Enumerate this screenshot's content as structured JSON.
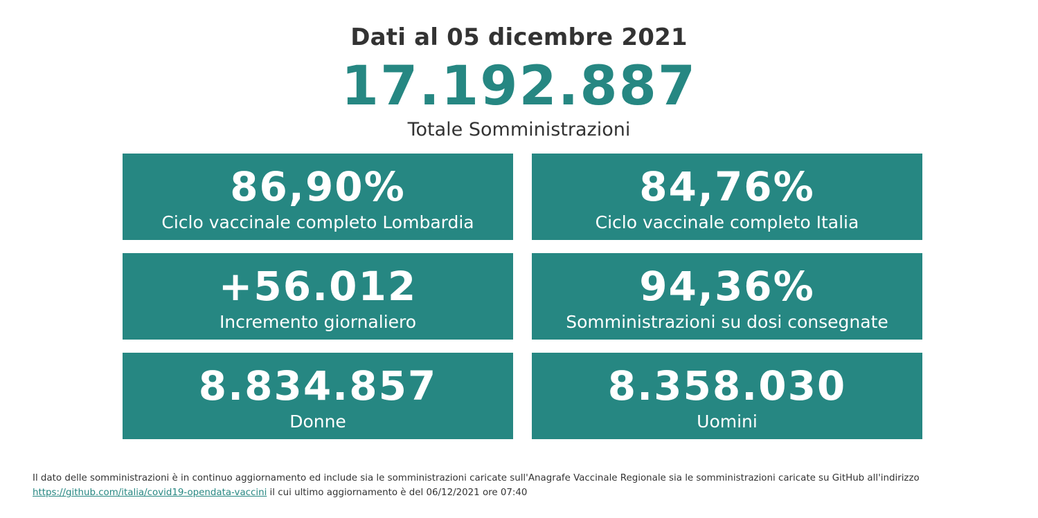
{
  "header": {
    "date_line": "Dati al 05 dicembre 2021",
    "total_value": "17.192.887",
    "total_label": "Totale Somministrazioni"
  },
  "tiles": [
    {
      "value": "86,90%",
      "label": "Ciclo vaccinale completo Lombardia"
    },
    {
      "value": "84,76%",
      "label": "Ciclo vaccinale completo Italia"
    },
    {
      "value": "+56.012",
      "label": "Incremento giornaliero"
    },
    {
      "value": "94,36%",
      "label": "Somministrazioni su dosi consegnate"
    },
    {
      "value": "8.834.857",
      "label": "Donne"
    },
    {
      "value": "8.358.030",
      "label": "Uomini"
    }
  ],
  "footnote": {
    "text_before": "Il dato delle somministrazioni è in continuo aggiornamento ed include sia le somministrazioni caricate sull'Anagrafe Vaccinale Regionale sia le somministrazioni caricate su GitHub all'indirizzo",
    "link_text": "https://github.com/italia/covid19-opendata-vaccini",
    "text_after": " il cui ultimo aggiornamento è del 06/12/2021 ore 07:40"
  },
  "colors": {
    "accent": "#268782",
    "text": "#333333",
    "background": "#ffffff"
  }
}
